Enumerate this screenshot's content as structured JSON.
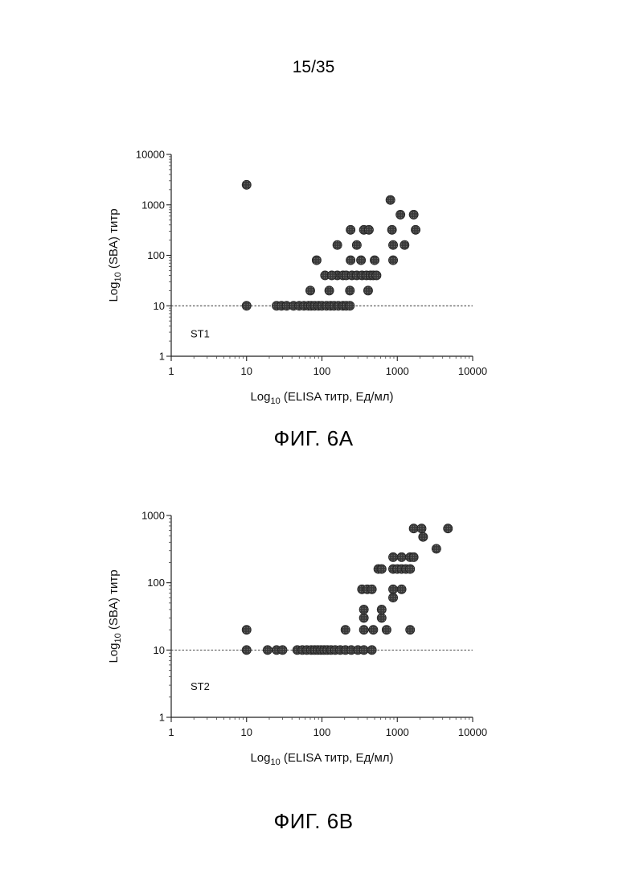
{
  "page_number": "15/35",
  "figures": [
    {
      "caption": "ФИГ. 6A"
    },
    {
      "caption": "ФИГ. 6B"
    }
  ],
  "chart_data": [
    {
      "type": "scatter",
      "panel_label": "ST1",
      "xlabel": {
        "prefix": "Log",
        "sub": "10",
        "suffix": " (ELISA титр, Ед/мл)"
      },
      "ylabel": {
        "prefix": "Log",
        "sub": "10",
        "suffix": " (SBA) титр"
      },
      "x_log_scale": true,
      "y_log_scale": true,
      "xlim": [
        1,
        10000
      ],
      "ylim": [
        1,
        10000
      ],
      "x_ticks": [
        1,
        10,
        100,
        1000,
        10000
      ],
      "x_tick_labels": [
        "1",
        "10",
        "100",
        "1000",
        "10000"
      ],
      "y_ticks": [
        1,
        10,
        100,
        1000,
        10000
      ],
      "y_tick_labels": [
        "1",
        "10",
        "100",
        "1000",
        "10000"
      ],
      "reference_line": 10,
      "points": [
        [
          10,
          2500
        ],
        [
          10,
          10
        ],
        [
          25,
          10
        ],
        [
          29,
          10
        ],
        [
          34,
          10
        ],
        [
          42,
          10
        ],
        [
          50,
          10
        ],
        [
          58,
          10
        ],
        [
          66,
          10
        ],
        [
          72,
          10
        ],
        [
          80,
          10
        ],
        [
          90,
          10
        ],
        [
          100,
          10
        ],
        [
          115,
          10
        ],
        [
          130,
          10
        ],
        [
          145,
          10
        ],
        [
          165,
          10
        ],
        [
          190,
          10
        ],
        [
          210,
          10
        ],
        [
          235,
          10
        ],
        [
          70,
          20
        ],
        [
          125,
          20
        ],
        [
          235,
          20
        ],
        [
          410,
          20
        ],
        [
          85,
          80
        ],
        [
          240,
          80
        ],
        [
          330,
          80
        ],
        [
          500,
          80
        ],
        [
          880,
          80
        ],
        [
          160,
          40
        ],
        [
          190,
          40
        ],
        [
          210,
          40
        ],
        [
          250,
          40
        ],
        [
          290,
          40
        ],
        [
          340,
          40
        ],
        [
          390,
          40
        ],
        [
          440,
          40
        ],
        [
          480,
          40
        ],
        [
          530,
          40
        ],
        [
          110,
          40
        ],
        [
          135,
          40
        ],
        [
          160,
          160
        ],
        [
          290,
          160
        ],
        [
          880,
          160
        ],
        [
          1250,
          160
        ],
        [
          810,
          1250
        ],
        [
          240,
          320
        ],
        [
          360,
          320
        ],
        [
          420,
          320
        ],
        [
          850,
          320
        ],
        [
          1750,
          320
        ],
        [
          1100,
          640
        ],
        [
          1650,
          640
        ]
      ]
    },
    {
      "type": "scatter",
      "panel_label": "ST2",
      "xlabel": {
        "prefix": "Log",
        "sub": "10",
        "suffix": " (ELISA титр, Ед/мл)"
      },
      "ylabel": {
        "prefix": "Log",
        "sub": "10",
        "suffix": " (SBA) титр"
      },
      "x_log_scale": true,
      "y_log_scale": true,
      "xlim": [
        1,
        10000
      ],
      "ylim": [
        1,
        1000
      ],
      "x_ticks": [
        1,
        10,
        100,
        1000,
        10000
      ],
      "x_tick_labels": [
        "1",
        "10",
        "100",
        "1000",
        "10000"
      ],
      "y_ticks": [
        1,
        10,
        100,
        1000
      ],
      "y_tick_labels": [
        "1",
        "10",
        "100",
        "1000"
      ],
      "reference_line": 10,
      "points": [
        [
          10,
          20
        ],
        [
          10,
          10
        ],
        [
          19,
          10
        ],
        [
          25,
          10
        ],
        [
          30,
          10
        ],
        [
          47,
          10
        ],
        [
          55,
          10
        ],
        [
          63,
          10
        ],
        [
          72,
          10
        ],
        [
          80,
          10
        ],
        [
          88,
          10
        ],
        [
          97,
          10
        ],
        [
          107,
          10
        ],
        [
          118,
          10
        ],
        [
          132,
          10
        ],
        [
          150,
          10
        ],
        [
          175,
          10
        ],
        [
          205,
          10
        ],
        [
          245,
          10
        ],
        [
          300,
          10
        ],
        [
          360,
          10
        ],
        [
          460,
          10
        ],
        [
          205,
          20
        ],
        [
          360,
          20
        ],
        [
          480,
          20
        ],
        [
          720,
          20
        ],
        [
          1480,
          20
        ],
        [
          360,
          30
        ],
        [
          620,
          30
        ],
        [
          360,
          40
        ],
        [
          620,
          40
        ],
        [
          880,
          60
        ],
        [
          880,
          80
        ],
        [
          340,
          80
        ],
        [
          400,
          80
        ],
        [
          460,
          80
        ],
        [
          1140,
          80
        ],
        [
          560,
          160
        ],
        [
          620,
          160
        ],
        [
          880,
          160
        ],
        [
          1000,
          160
        ],
        [
          1140,
          160
        ],
        [
          1300,
          160
        ],
        [
          1480,
          160
        ],
        [
          880,
          240
        ],
        [
          1140,
          240
        ],
        [
          1480,
          240
        ],
        [
          1650,
          240
        ],
        [
          1650,
          640
        ],
        [
          2100,
          640
        ],
        [
          2200,
          480
        ],
        [
          3300,
          320
        ],
        [
          4700,
          640
        ]
      ]
    }
  ]
}
